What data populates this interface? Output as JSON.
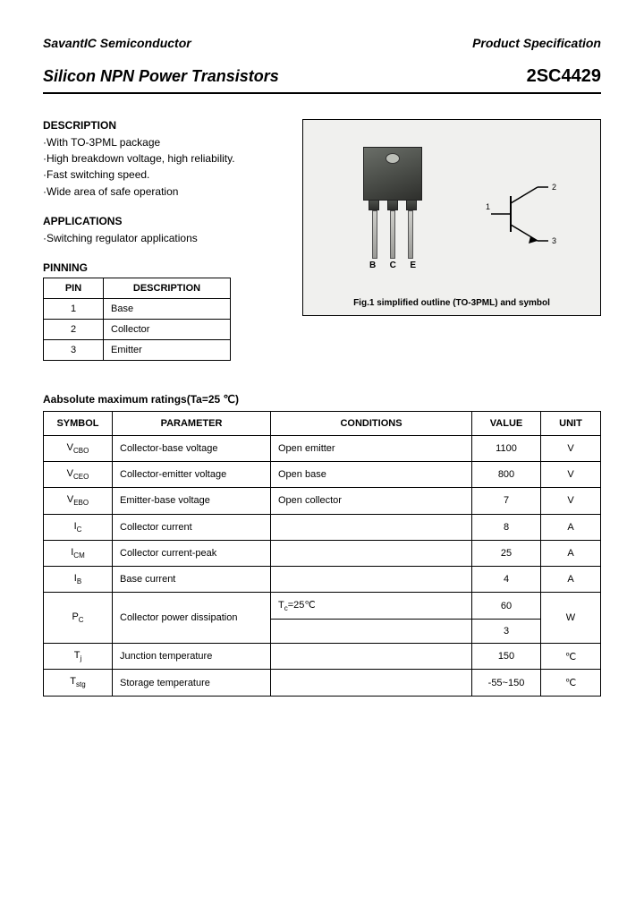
{
  "header": {
    "company": "SavantIC Semiconductor",
    "doc_type": "Product Specification"
  },
  "title": {
    "left": "Silicon NPN Power Transistors",
    "right": "2SC4429"
  },
  "description": {
    "heading": "DESCRIPTION",
    "items": [
      "·With TO-3PML package",
      "·High breakdown voltage, high reliability.",
      "·Fast switching speed.",
      "·Wide area of safe operation"
    ]
  },
  "applications": {
    "heading": "APPLICATIONS",
    "items": [
      "·Switching regulator applications"
    ]
  },
  "pinning": {
    "heading": "PINNING",
    "columns": [
      "PIN",
      "DESCRIPTION"
    ],
    "rows": [
      [
        "1",
        "Base"
      ],
      [
        "2",
        "Collector"
      ],
      [
        "3",
        "Emitter"
      ]
    ]
  },
  "figure": {
    "lead_labels": [
      "B",
      "C",
      "E"
    ],
    "sym_labels": {
      "b": "1",
      "c": "2",
      "e": "3"
    },
    "caption": "Fig.1 simplified outline (TO-3PML) and symbol"
  },
  "ratings": {
    "title": "Aabsolute maximum ratings(Ta=25 ℃)",
    "columns": [
      "SYMBOL",
      "PARAMETER",
      "CONDITIONS",
      "VALUE",
      "UNIT"
    ],
    "rows": [
      {
        "sym_html": "V<sub>CBO</sub>",
        "param": "Collector-base voltage",
        "cond": "Open emitter",
        "value": "1100",
        "unit": "V"
      },
      {
        "sym_html": "V<sub>CEO</sub>",
        "param": "Collector-emitter voltage",
        "cond": "Open base",
        "value": "800",
        "unit": "V"
      },
      {
        "sym_html": "V<sub>EBO</sub>",
        "param": "Emitter-base voltage",
        "cond": "Open collector",
        "value": "7",
        "unit": "V"
      },
      {
        "sym_html": "I<sub>C</sub>",
        "param": "Collector current",
        "cond": "",
        "value": "8",
        "unit": "A"
      },
      {
        "sym_html": "I<sub>CM</sub>",
        "param": "Collector current-peak",
        "cond": "",
        "value": "25",
        "unit": "A"
      },
      {
        "sym_html": "I<sub>B</sub>",
        "param": "Base current",
        "cond": "",
        "value": "4",
        "unit": "A"
      }
    ],
    "pc_row": {
      "sym_html": "P<sub>C</sub>",
      "param": "Collector power dissipation",
      "cond1": "T<sub>c</sub>=25℃",
      "value1": "60",
      "cond2": "",
      "value2": "3",
      "unit": "W"
    },
    "tail_rows": [
      {
        "sym_html": "T<sub>j</sub>",
        "param": "Junction temperature",
        "cond": "",
        "value": "150",
        "unit": "℃"
      },
      {
        "sym_html": "T<sub>stg</sub>",
        "param": "Storage temperature",
        "cond": "",
        "value": "-55~150",
        "unit": "℃"
      }
    ]
  },
  "style": {
    "page_bg": "#ffffff",
    "text_color": "#000000",
    "fig_bg": "#f0f0ee",
    "border_color": "#000000"
  }
}
